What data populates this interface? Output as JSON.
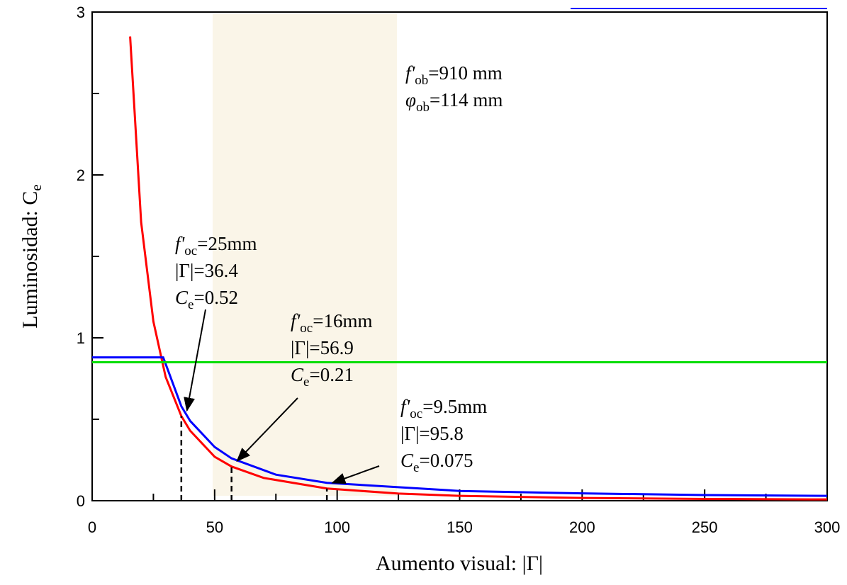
{
  "chart_data": {
    "type": "line",
    "x_label": "Aumento visual: |Γ|",
    "y_label": {
      "sym": "Luminosidad: C",
      "sub": "e"
    },
    "xlim": [
      0,
      300
    ],
    "xticks": [
      0,
      50,
      100,
      150,
      200,
      250,
      300
    ],
    "xminor": [
      25,
      75,
      125,
      175,
      225,
      275
    ],
    "ylim": [
      0,
      3
    ],
    "yticks": [
      0,
      1,
      2,
      3
    ],
    "yminor": [
      0.5,
      1.5,
      2.5
    ],
    "series": [
      {
        "color": "#ff0000",
        "x": [
          15.5,
          20,
          25,
          30,
          36.4,
          40,
          50,
          56.9,
          70,
          95.8,
          125,
          150,
          200,
          250,
          300
        ],
        "values": [
          2.85,
          1.71,
          1.1,
          0.76,
          0.52,
          0.43,
          0.27,
          0.21,
          0.14,
          0.075,
          0.044,
          0.03,
          0.017,
          0.011,
          0.008
        ]
      },
      {
        "color": "#0000ff",
        "x": [
          0,
          29,
          30,
          36.4,
          40,
          50,
          56.9,
          75,
          95.8,
          150,
          200,
          250,
          300
        ],
        "values": [
          0.88,
          0.88,
          0.84,
          0.58,
          0.49,
          0.33,
          0.26,
          0.16,
          0.11,
          0.06,
          0.045,
          0.035,
          0.03
        ]
      },
      {
        "color": "#00dd00",
        "x": [
          0,
          300
        ],
        "values": [
          0.85,
          0.85
        ]
      }
    ],
    "annotations": [
      {
        "lines": [
          {
            "sym": "f'",
            "sub": "ob",
            "rest": "=910 mm"
          },
          {
            "sym": "φ",
            "sub": "ob",
            "rest": "=114 mm"
          }
        ]
      },
      {
        "lines": [
          {
            "sym": "f'",
            "sub": "oc",
            "rest": "=25mm"
          },
          {
            "rest": "|Γ|=",
            "value": 36.4
          },
          {
            "sym": "C",
            "sub": "e",
            "rest": "=",
            "value": 0.52
          }
        ]
      },
      {
        "lines": [
          {
            "sym": "f'",
            "sub": "oc",
            "rest": "=16mm"
          },
          {
            "rest": "|Γ|=",
            "value": 56.9
          },
          {
            "sym": "C",
            "sub": "e",
            "rest": "=",
            "value": 0.21
          }
        ]
      },
      {
        "lines": [
          {
            "sym": "f'",
            "sub": "oc",
            "rest": "=9.5mm"
          },
          {
            "rest": "|Γ|=",
            "value": 95.8
          },
          {
            "sym": "C",
            "sub": "e",
            "rest": "=",
            "value": 0.075
          }
        ]
      }
    ]
  }
}
